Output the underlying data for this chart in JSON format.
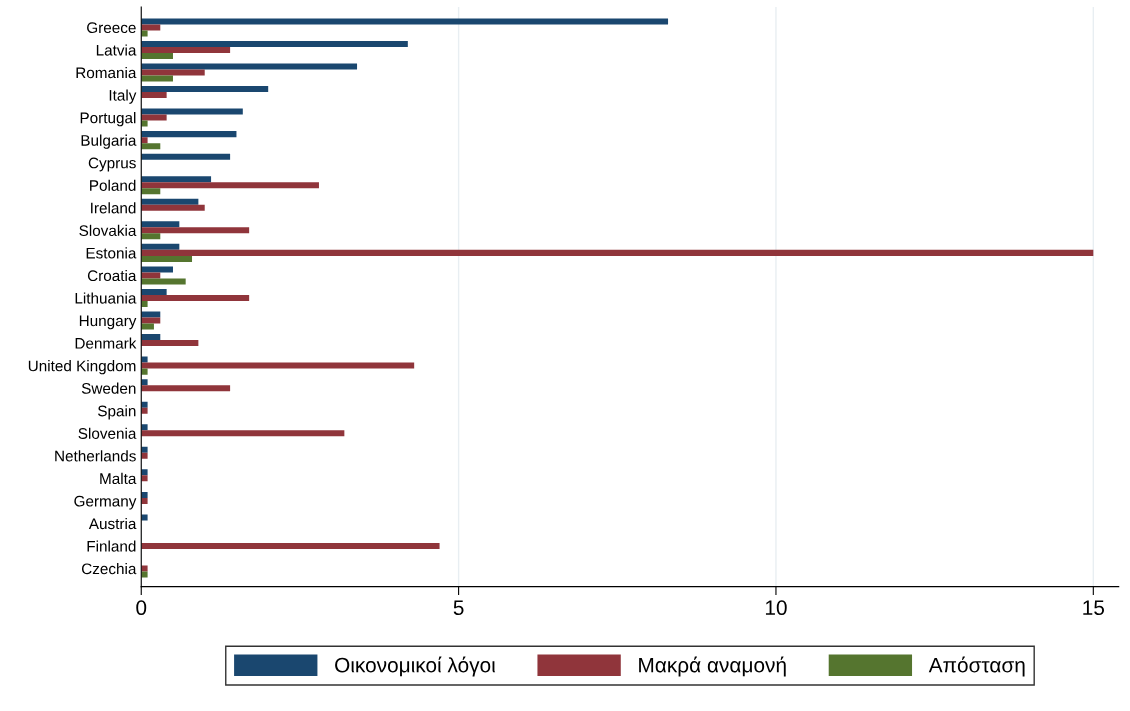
{
  "chart_data": {
    "type": "bar",
    "orientation": "horizontal",
    "categories": [
      "Greece",
      "Latvia",
      "Romania",
      "Italy",
      "Portugal",
      "Bulgaria",
      "Cyprus",
      "Poland",
      "Ireland",
      "Slovakia",
      "Estonia",
      "Croatia",
      "Lithuania",
      "Hungary",
      "Denmark",
      "United Kingdom",
      "Sweden",
      "Spain",
      "Slovenia",
      "Netherlands",
      "Malta",
      "Germany",
      "Austria",
      "Finland",
      "Czechia"
    ],
    "series": [
      {
        "name": "Οικονομικοί λόγοι",
        "color": "#1a476f",
        "values": [
          8.3,
          4.2,
          3.4,
          2.0,
          1.6,
          1.5,
          1.4,
          1.1,
          0.9,
          0.6,
          0.6,
          0.5,
          0.4,
          0.3,
          0.3,
          0.1,
          0.1,
          0.1,
          0.1,
          0.1,
          0.1,
          0.1,
          0.1,
          0,
          0
        ]
      },
      {
        "name": "Μακρά αναμονή",
        "color": "#90353b",
        "values": [
          0.3,
          1.4,
          1.0,
          0.4,
          0.4,
          0.1,
          0,
          2.8,
          1.0,
          1.7,
          15.0,
          0.3,
          1.7,
          0.3,
          0.9,
          4.3,
          1.4,
          0.1,
          3.2,
          0.1,
          0.1,
          0.1,
          0,
          4.7,
          0.1
        ]
      },
      {
        "name": "Απόσταση",
        "color": "#55752f",
        "values": [
          0.1,
          0.5,
          0.5,
          0,
          0.1,
          0.3,
          0,
          0.3,
          0,
          0.3,
          0.8,
          0.7,
          0.1,
          0.2,
          0,
          0.1,
          0,
          0,
          0,
          0,
          0,
          0,
          0,
          0,
          0.1
        ]
      }
    ],
    "xlim": [
      0,
      15.4
    ],
    "xticks": [
      0,
      5,
      10,
      15
    ],
    "grid": "x",
    "legend": "bottom"
  }
}
